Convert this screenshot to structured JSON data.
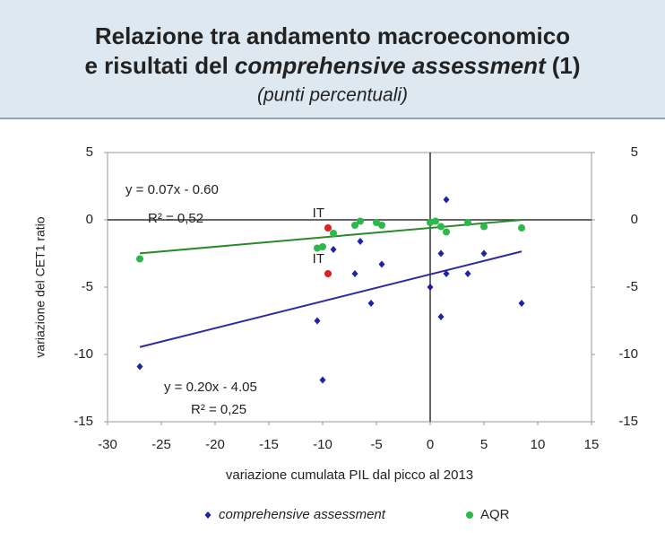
{
  "chart_data": {
    "type": "scatter",
    "title": {
      "line1": "Relazione tra andamento macroeconomico",
      "line2_start": "e risultati del",
      "line2_italic": "comprehensive assessment",
      "line2_end": "(1)"
    },
    "subtitle": "(punti percentuali)",
    "xlabel": "variazione cumulata PIL dal picco al 2013",
    "ylabel": "variazione del CET1 ratio",
    "xlim": [
      -30,
      15
    ],
    "xticks": [
      -30,
      -25,
      -20,
      -15,
      -10,
      -5,
      0,
      5,
      10,
      15
    ],
    "ylim": [
      -15,
      5
    ],
    "yticks": [
      -15,
      -10,
      -5,
      0,
      5
    ],
    "y2lim": [
      -15,
      5
    ],
    "y2ticks": [
      -15,
      -10,
      -5,
      0,
      5
    ],
    "legend": "bottom",
    "series": [
      {
        "name": "comprehensive assessment",
        "color": "#2020a8",
        "marker": "diamond",
        "x": [
          -27,
          -10.5,
          -10,
          -9,
          -7,
          -6.5,
          -5.5,
          -4.5,
          0,
          1,
          1,
          1.5,
          1.5,
          3.5,
          5,
          8.5
        ],
        "values": [
          -10.9,
          -7.5,
          -11.9,
          -2.2,
          -4,
          -1.6,
          -6.2,
          -3.3,
          -5,
          -2.5,
          -7.2,
          1.5,
          -4,
          -4,
          -2.5,
          -6.2
        ]
      },
      {
        "name": "AQR",
        "color": "#2db84a",
        "marker": "circle",
        "x": [
          -27,
          -10.5,
          -10,
          -9,
          -7,
          -6.5,
          -5,
          -4.5,
          0,
          0.5,
          1,
          1.5,
          3.5,
          5,
          8.5
        ],
        "values": [
          -2.9,
          -2.1,
          -2,
          -1,
          -0.4,
          -0.1,
          -0.2,
          -0.4,
          -0.2,
          -0.1,
          -0.5,
          -0.9,
          -0.2,
          -0.5,
          -0.6
        ]
      }
    ],
    "highlights": [
      {
        "label": "IT",
        "x": -9.5,
        "y": -0.6,
        "color": "#e02020"
      },
      {
        "label": "IT",
        "x": -9.5,
        "y": -4,
        "color": "#e02020"
      }
    ],
    "trendlines": [
      {
        "color": "#2a8a2a",
        "slope": 0.07,
        "intercept": -0.6,
        "x": [
          -27,
          8.5
        ],
        "equation": "y = 0.07x - 0.60",
        "r2": "R² = 0,52"
      },
      {
        "color": "#2a2a9a",
        "slope": 0.2,
        "intercept": -4.05,
        "x": [
          -27,
          8.5
        ],
        "equation": "y = 0.20x - 4.05",
        "r2": "R² = 0,25"
      }
    ]
  }
}
